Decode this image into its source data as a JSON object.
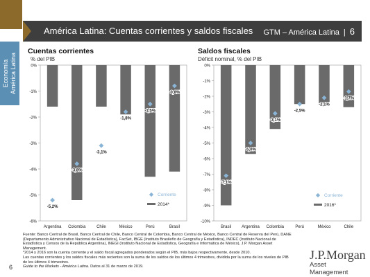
{
  "header": {
    "title": "América Latina: Cuentas corrientes y saldos fiscales",
    "guide": "GTM – América Latina",
    "page": "6"
  },
  "side_label": "Economía\nAmérica Latina",
  "colors": {
    "bar": "#6a6a6a",
    "marker": "#8ab4d6",
    "header_bg": "#3e3e3e",
    "accent": "#8b6a2c",
    "side_tab": "#5b8fb4"
  },
  "panels": {
    "left": {
      "title": "Cuentas corrientes",
      "subtitle": "% del PIB"
    },
    "right": {
      "title": "Saldos fiscales",
      "subtitle": "Déficit nominal, % del PIB"
    }
  },
  "chart_data": [
    {
      "type": "bar",
      "title": "Cuentas corrientes",
      "ylabel": "% del PIB",
      "categories": [
        "Argentina",
        "Colombia",
        "Chile",
        "México",
        "Perú",
        "Brasil"
      ],
      "series": [
        {
          "name": "2014*",
          "kind": "bar",
          "values": [
            -1.6,
            -5.2,
            -1.6,
            -1.9,
            -4.3,
            -4.1
          ]
        },
        {
          "name": "Corriente",
          "kind": "marker",
          "values": [
            -5.2,
            -3.8,
            -3.1,
            -1.8,
            -1.5,
            -0.8
          ]
        }
      ],
      "data_labels": [
        "-5,2%",
        "-3,8%",
        "-3,1%",
        "-1,8%",
        "-1,5%",
        "-0,8%"
      ],
      "ylim": [
        -6,
        0
      ],
      "yticks": [
        0,
        -1,
        -2,
        -3,
        -4,
        -5,
        -6
      ],
      "ytick_labels": [
        "0%",
        "-1%",
        "-2%",
        "-3%",
        "-4%",
        "-5%",
        "-6%"
      ],
      "legend": [
        "Corriente",
        "2014*"
      ],
      "legend_position": "bottom-right",
      "grid": false
    },
    {
      "type": "bar",
      "title": "Saldos fiscales",
      "ylabel": "Déficit nominal, % del PIB",
      "categories": [
        "Brasil",
        "Argentina",
        "Colombia",
        "Perú",
        "México",
        "Chile"
      ],
      "series": [
        {
          "name": "2016*",
          "kind": "bar",
          "values": [
            -9.0,
            -5.7,
            -4.1,
            -2.5,
            -2.5,
            -2.7
          ]
        },
        {
          "name": "Corriente",
          "kind": "marker",
          "values": [
            -7.1,
            -5.0,
            -3.1,
            -2.5,
            -2.1,
            -1.7
          ]
        }
      ],
      "data_labels": [
        "-7,1%",
        "-5,0%",
        "-3,1%",
        "-2,5%",
        "-2,1%",
        "-1,7%"
      ],
      "ylim": [
        -10,
        0
      ],
      "yticks": [
        0,
        -1,
        -2,
        -3,
        -4,
        -5,
        -6,
        -7,
        -8,
        -9,
        -10
      ],
      "ytick_labels": [
        "0%",
        "-1%",
        "-2%",
        "-3%",
        "-4%",
        "-5%",
        "-6%",
        "-7%",
        "-8%",
        "-9%",
        "-10%"
      ],
      "legend": [
        "Corriente",
        "2016*"
      ],
      "legend_position": "bottom-right",
      "grid": false
    }
  ],
  "footer": {
    "source": "Fuente: Banco Central de Brasil, Banco Central de Chile, Banco Central de Colombia, Banco Central de México, Banco Central de Reserva del Perú, DANE (Departamento Administrativo Nacional de Estadística), FacSet, IBGE (Instituto Brasileño de Geografía y Estadística), INDEC (Instituto Nacional de Estadística y Censos de la República Argentina), INEGI (Instituto Nacional de Estadística, Geografía e Informática de México), J.P. Morgan Asset Management.",
    "note1": "*2014 y 2016 son la cuenta corriente y el saldo fiscal agregados ponderados según el PIB, más bajos respectivamente, desde 2010.",
    "note2": "Las cuentas corrientes y los saldos fiscales más recientes son la suma de los saldos de los últimos 4 trimestres, dividida por la suma de los niveles de PIB de los últimos 4 trimestres.",
    "guide": "Guide to the Markets - América Latina.",
    "date": " Datos al 31 de marzo de 2019."
  },
  "page_number": "6",
  "logo": {
    "name": "J.P.Morgan",
    "sub": "Asset Management"
  }
}
